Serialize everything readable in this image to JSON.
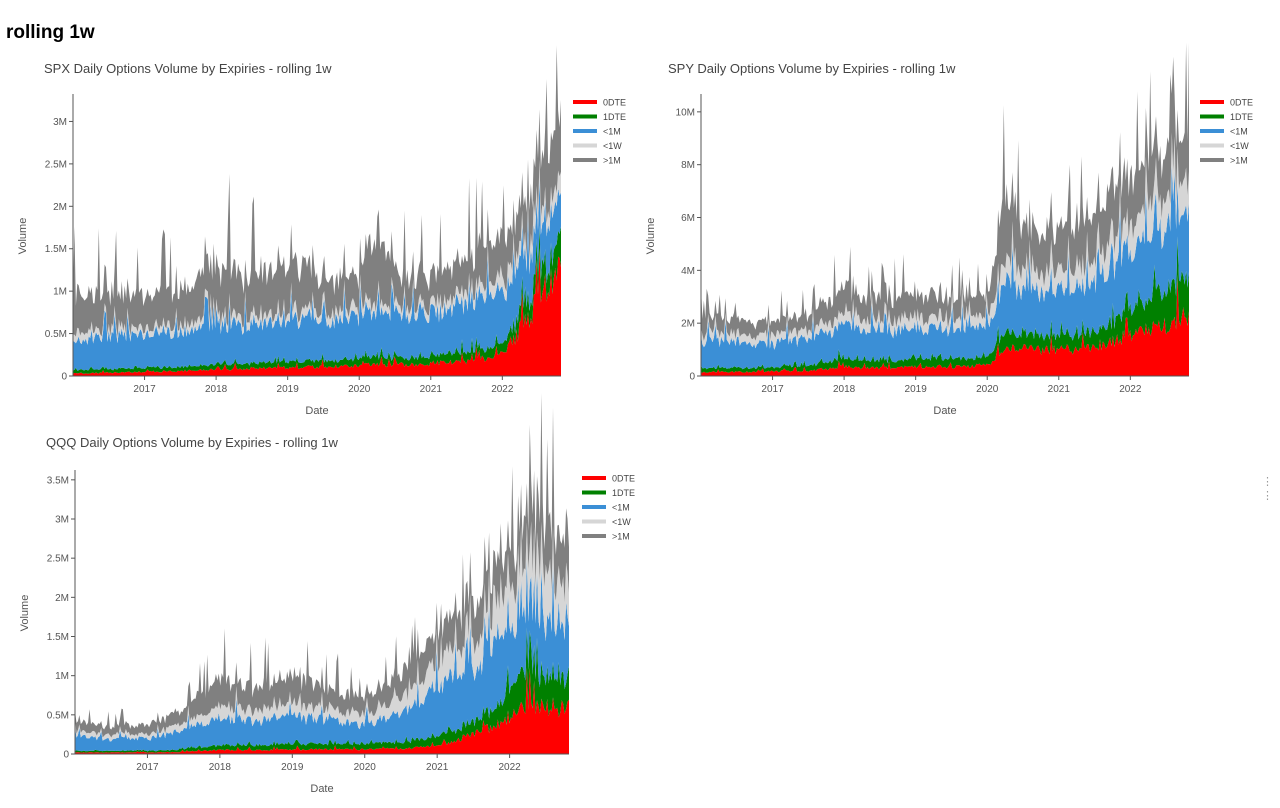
{
  "page_title": "rolling 1w",
  "legend_colors": {
    "0DTE": "#ff0000",
    "1DTE": "#008000",
    "<1M": "#3b8fd6",
    "<1W": "#d6d6d6",
    ">1M": "#808080"
  },
  "menu_icon": "vertical-ellipsis-icon",
  "chart_data": [
    {
      "id": "spx",
      "type": "area",
      "stacked": true,
      "title": "SPX Daily Options Volume by Expiries - rolling 1w",
      "xlabel": "Date",
      "ylabel": "Volume",
      "xlim": [
        2016.0,
        2022.82
      ],
      "ylim": [
        0,
        3300000
      ],
      "xticks": [
        2017,
        2018,
        2019,
        2020,
        2021,
        2022
      ],
      "yticks": [
        {
          "v": 0,
          "label": "0"
        },
        {
          "v": 500000,
          "label": "0.5M"
        },
        {
          "v": 1000000,
          "label": "1M"
        },
        {
          "v": 1500000,
          "label": "1.5M"
        },
        {
          "v": 2000000,
          "label": "2M"
        },
        {
          "v": 2500000,
          "label": "2.5M"
        },
        {
          "v": 3000000,
          "label": "3M"
        }
      ],
      "legend": [
        "0DTE",
        "1DTE",
        "<1M",
        "<1W",
        ">1M"
      ],
      "legend_position": "top-right",
      "series_order": [
        "0DTE",
        "1DTE",
        "<1M",
        "<1W",
        ">1M"
      ],
      "x": [
        2016.0,
        2016.5,
        2017.0,
        2017.5,
        2018.0,
        2018.5,
        2019.0,
        2019.5,
        2020.0,
        2020.25,
        2020.5,
        2021.0,
        2021.5,
        2022.0,
        2022.3,
        2022.5,
        2022.82
      ],
      "series": [
        {
          "name": "0DTE",
          "values": [
            30000,
            40000,
            50000,
            60000,
            80000,
            90000,
            100000,
            110000,
            120000,
            140000,
            130000,
            150000,
            170000,
            250000,
            600000,
            900000,
            1250000
          ]
        },
        {
          "name": "1DTE",
          "values": [
            40000,
            40000,
            45000,
            50000,
            60000,
            60000,
            70000,
            70000,
            80000,
            90000,
            80000,
            90000,
            100000,
            120000,
            200000,
            250000,
            300000
          ]
        },
        {
          "name": "<1M",
          "values": [
            350000,
            380000,
            400000,
            420000,
            450000,
            460000,
            500000,
            480000,
            500000,
            520000,
            480000,
            500000,
            550000,
            600000,
            550000,
            500000,
            450000
          ]
        },
        {
          "name": "<1W",
          "values": [
            80000,
            80000,
            80000,
            80000,
            90000,
            90000,
            90000,
            90000,
            100000,
            100000,
            90000,
            100000,
            120000,
            150000,
            150000,
            180000,
            200000
          ]
        },
        {
          "name": ">1M",
          "values": [
            450000,
            420000,
            380000,
            420000,
            550000,
            450000,
            580000,
            400000,
            380000,
            900000,
            350000,
            360000,
            400000,
            450000,
            500000,
            550000,
            700000
          ]
        }
      ]
    },
    {
      "id": "spy",
      "type": "area",
      "stacked": true,
      "title": "SPY Daily Options Volume by Expiries - rolling 1w",
      "xlabel": "Date",
      "ylabel": "Volume",
      "xlim": [
        2016.0,
        2022.82
      ],
      "ylim": [
        0,
        10600000
      ],
      "xticks": [
        2017,
        2018,
        2019,
        2020,
        2021,
        2022
      ],
      "yticks": [
        {
          "v": 0,
          "label": "0"
        },
        {
          "v": 2000000,
          "label": "2M"
        },
        {
          "v": 4000000,
          "label": "4M"
        },
        {
          "v": 6000000,
          "label": "6M"
        },
        {
          "v": 8000000,
          "label": "8M"
        },
        {
          "v": 10000000,
          "label": "10M"
        }
      ],
      "legend": [
        "0DTE",
        "1DTE",
        "<1M",
        "<1W",
        ">1M"
      ],
      "legend_position": "top-right",
      "series_order": [
        "0DTE",
        "1DTE",
        "<1M",
        "<1W",
        ">1M"
      ],
      "x": [
        2016.0,
        2016.5,
        2017.0,
        2017.5,
        2018.0,
        2018.5,
        2019.0,
        2019.5,
        2020.0,
        2020.25,
        2020.5,
        2021.0,
        2021.5,
        2022.0,
        2022.3,
        2022.5,
        2022.82
      ],
      "series": [
        {
          "name": "0DTE",
          "values": [
            150000,
            150000,
            180000,
            200000,
            350000,
            300000,
            350000,
            350000,
            400000,
            1100000,
            1000000,
            1000000,
            1100000,
            1500000,
            1800000,
            2000000,
            2200000
          ]
        },
        {
          "name": "1DTE",
          "values": [
            150000,
            150000,
            150000,
            200000,
            300000,
            250000,
            300000,
            300000,
            300000,
            700000,
            500000,
            500000,
            600000,
            900000,
            1200000,
            1300000,
            1500000
          ]
        },
        {
          "name": "<1M",
          "values": [
            1000000,
            950000,
            900000,
            1000000,
            1300000,
            1100000,
            1200000,
            1100000,
            1100000,
            2000000,
            1600000,
            1700000,
            1800000,
            2400000,
            2500000,
            2500000,
            2500000
          ]
        },
        {
          "name": "<1W",
          "values": [
            300000,
            300000,
            300000,
            300000,
            400000,
            400000,
            400000,
            400000,
            400000,
            800000,
            700000,
            700000,
            800000,
            1000000,
            1100000,
            1100000,
            1200000
          ]
        },
        {
          "name": ">1M",
          "values": [
            600000,
            550000,
            500000,
            600000,
            1000000,
            800000,
            900000,
            800000,
            700000,
            2400000,
            1600000,
            1500000,
            1700000,
            1900000,
            1800000,
            1700000,
            1700000
          ]
        }
      ]
    },
    {
      "id": "qqq",
      "type": "area",
      "stacked": true,
      "title": "QQQ Daily Options Volume by Expiries - rolling 1w",
      "xlabel": "Date",
      "ylabel": "Volume",
      "xlim": [
        2016.0,
        2022.82
      ],
      "ylim": [
        0,
        3600000
      ],
      "xticks": [
        2017,
        2018,
        2019,
        2020,
        2021,
        2022
      ],
      "yticks": [
        {
          "v": 0,
          "label": "0"
        },
        {
          "v": 500000,
          "label": "0.5M"
        },
        {
          "v": 1000000,
          "label": "1M"
        },
        {
          "v": 1500000,
          "label": "1.5M"
        },
        {
          "v": 2000000,
          "label": "2M"
        },
        {
          "v": 2500000,
          "label": "2.5M"
        },
        {
          "v": 3000000,
          "label": "3M"
        },
        {
          "v": 3500000,
          "label": "3.5M"
        }
      ],
      "legend": [
        "0DTE",
        "1DTE",
        "<1M",
        "<1W",
        ">1M"
      ],
      "legend_position": "top-right",
      "series_order": [
        "0DTE",
        "1DTE",
        "<1M",
        "<1W",
        ">1M"
      ],
      "x": [
        2016.0,
        2016.5,
        2017.0,
        2017.5,
        2018.0,
        2018.5,
        2019.0,
        2019.5,
        2020.0,
        2020.5,
        2021.0,
        2021.5,
        2021.9,
        2022.1,
        2022.3,
        2022.5,
        2022.82
      ],
      "series": [
        {
          "name": "0DTE",
          "values": [
            20000,
            20000,
            20000,
            30000,
            50000,
            50000,
            60000,
            60000,
            60000,
            70000,
            100000,
            250000,
            400000,
            550000,
            650000,
            600000,
            600000
          ]
        },
        {
          "name": "1DTE",
          "values": [
            20000,
            20000,
            20000,
            30000,
            60000,
            60000,
            70000,
            70000,
            70000,
            80000,
            120000,
            150000,
            250000,
            400000,
            450000,
            400000,
            400000
          ]
        },
        {
          "name": "<1M",
          "values": [
            180000,
            150000,
            150000,
            250000,
            350000,
            300000,
            350000,
            300000,
            250000,
            350000,
            600000,
            700000,
            850000,
            700000,
            750000,
            700000,
            650000
          ]
        },
        {
          "name": "<1W",
          "values": [
            60000,
            50000,
            50000,
            80000,
            150000,
            130000,
            150000,
            130000,
            120000,
            200000,
            300000,
            350000,
            450000,
            550000,
            600000,
            550000,
            500000
          ]
        },
        {
          "name": ">1M",
          "values": [
            120000,
            100000,
            120000,
            180000,
            350000,
            300000,
            350000,
            250000,
            200000,
            300000,
            400000,
            450000,
            550000,
            500000,
            650000,
            600000,
            600000
          ]
        }
      ]
    }
  ]
}
